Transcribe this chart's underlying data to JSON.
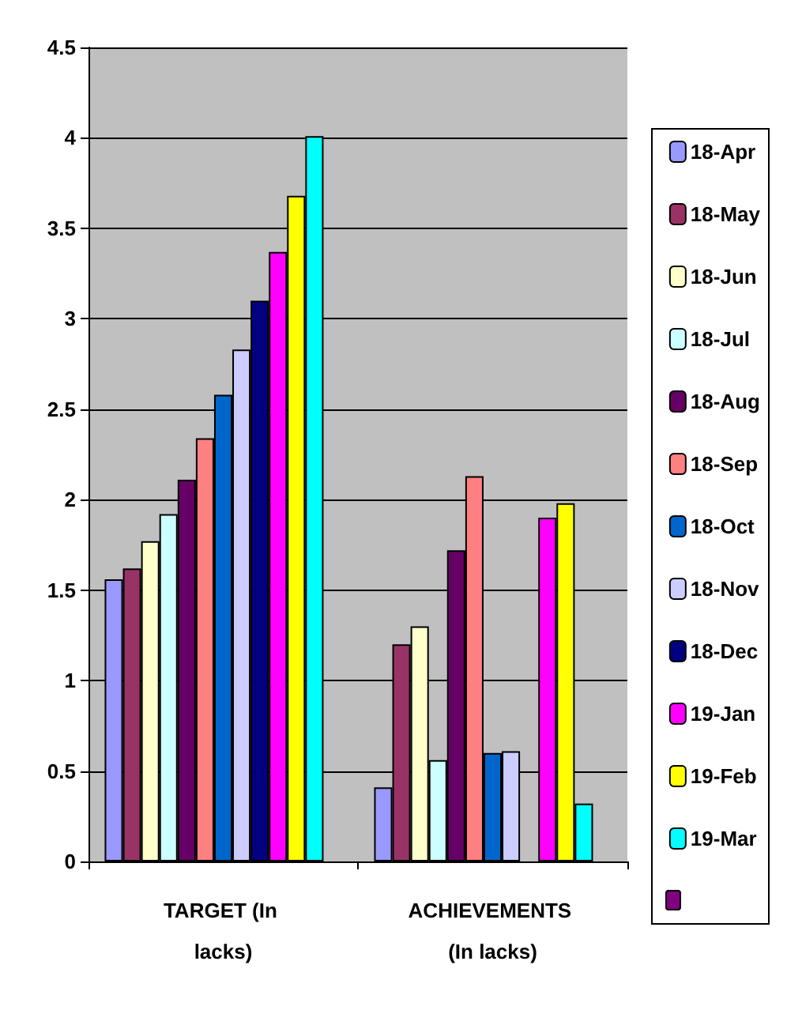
{
  "chart_data": {
    "type": "bar",
    "categories": [
      "TARGET (In lacks)",
      "ACHIEVEMENTS (In lacks)"
    ],
    "series": [
      {
        "name": "18-Apr",
        "color": "#9999ff",
        "values": [
          1.56,
          0.41
        ]
      },
      {
        "name": "18-May",
        "color": "#993366",
        "values": [
          1.62,
          1.2
        ]
      },
      {
        "name": "18-Jun",
        "color": "#ffffcc",
        "values": [
          1.77,
          1.3
        ]
      },
      {
        "name": "18-Jul",
        "color": "#ccffff",
        "values": [
          1.92,
          0.56
        ]
      },
      {
        "name": "18-Aug",
        "color": "#660066",
        "values": [
          2.11,
          1.72
        ]
      },
      {
        "name": "18-Sep",
        "color": "#ff8080",
        "values": [
          2.34,
          2.13
        ]
      },
      {
        "name": "18-Oct",
        "color": "#0066cc",
        "values": [
          2.58,
          0.6
        ]
      },
      {
        "name": "18-Nov",
        "color": "#ccccff",
        "values": [
          2.83,
          0.61
        ]
      },
      {
        "name": "18-Dec",
        "color": "#000080",
        "values": [
          3.1,
          null
        ]
      },
      {
        "name": "19-Jan",
        "color": "#ff00ff",
        "values": [
          3.37,
          1.9
        ]
      },
      {
        "name": "19-Feb",
        "color": "#ffff00",
        "values": [
          3.68,
          1.98
        ]
      },
      {
        "name": "19-Mar",
        "color": "#00ffff",
        "values": [
          4.01,
          0.32
        ]
      },
      {
        "color": "#800080",
        "values": [
          null,
          null
        ]
      }
    ],
    "ylim": [
      0,
      4.5
    ],
    "yticks": [
      0,
      0.5,
      1,
      1.5,
      2,
      2.5,
      3,
      3.5,
      4,
      4.5
    ],
    "grid": "y",
    "legend": "right"
  }
}
